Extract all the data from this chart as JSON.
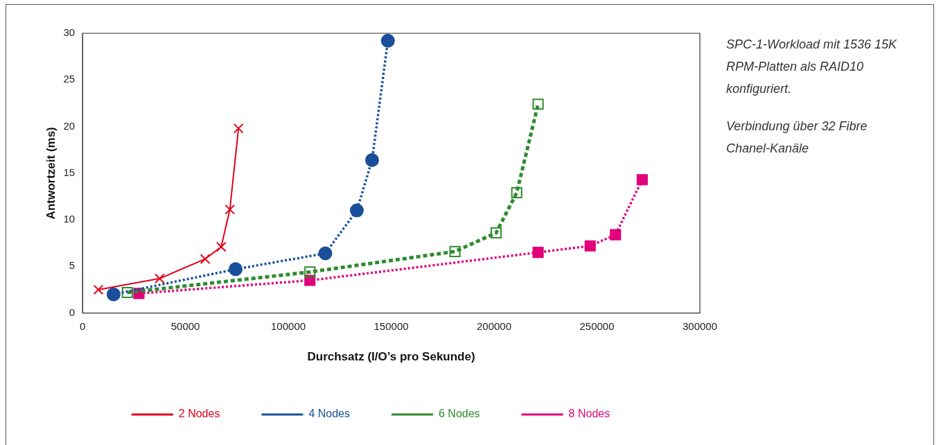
{
  "chart_data": {
    "type": "line",
    "xlabel": "Durchsatz (I/O’s pro Sekunde)",
    "ylabel": "Antwortzeit (ms)",
    "xlim": [
      0,
      300000
    ],
    "xticks": [
      0,
      50000,
      100000,
      150000,
      200000,
      250000,
      300000
    ],
    "ylim": [
      0,
      30
    ],
    "yticks": [
      0,
      5,
      10,
      15,
      20,
      25,
      30
    ],
    "grid": false,
    "legend": "bottom",
    "annotations": [
      "SPC-1-Workload mit 1536 15K RPM-Platten als RAID10 konfiguriert.",
      "Verbindung über 32 Fibre Chanel-Kanäle"
    ],
    "series": [
      {
        "name": "2 Nodes",
        "color": "#e2001a",
        "marker": "cross",
        "line_style": "solid",
        "x": [
          7700,
          37500,
          59600,
          67400,
          71600,
          75800
        ],
        "values": [
          2.5,
          3.7,
          5.8,
          7.1,
          11.1,
          19.8
        ]
      },
      {
        "name": "4 Nodes",
        "color": "#1a4f9c",
        "marker": "circle",
        "line_style": "dotted",
        "x": [
          15100,
          74400,
          118000,
          133300,
          140700,
          148400
        ],
        "values": [
          2.0,
          4.7,
          6.4,
          11.0,
          16.4,
          29.2
        ]
      },
      {
        "name": "6 Nodes",
        "color": "#2e8b2e",
        "marker": "square",
        "line_style": "dashed",
        "x": [
          21800,
          110500,
          181000,
          201000,
          211000,
          221400
        ],
        "values": [
          2.2,
          4.4,
          6.6,
          8.6,
          12.9,
          22.4
        ]
      },
      {
        "name": "8 Nodes",
        "color": "#e0007a",
        "marker": "square",
        "line_style": "dotted",
        "x": [
          27400,
          110500,
          221400,
          246700,
          259000,
          272000
        ],
        "values": [
          2.1,
          3.5,
          6.5,
          7.2,
          8.4,
          14.3
        ]
      }
    ]
  }
}
